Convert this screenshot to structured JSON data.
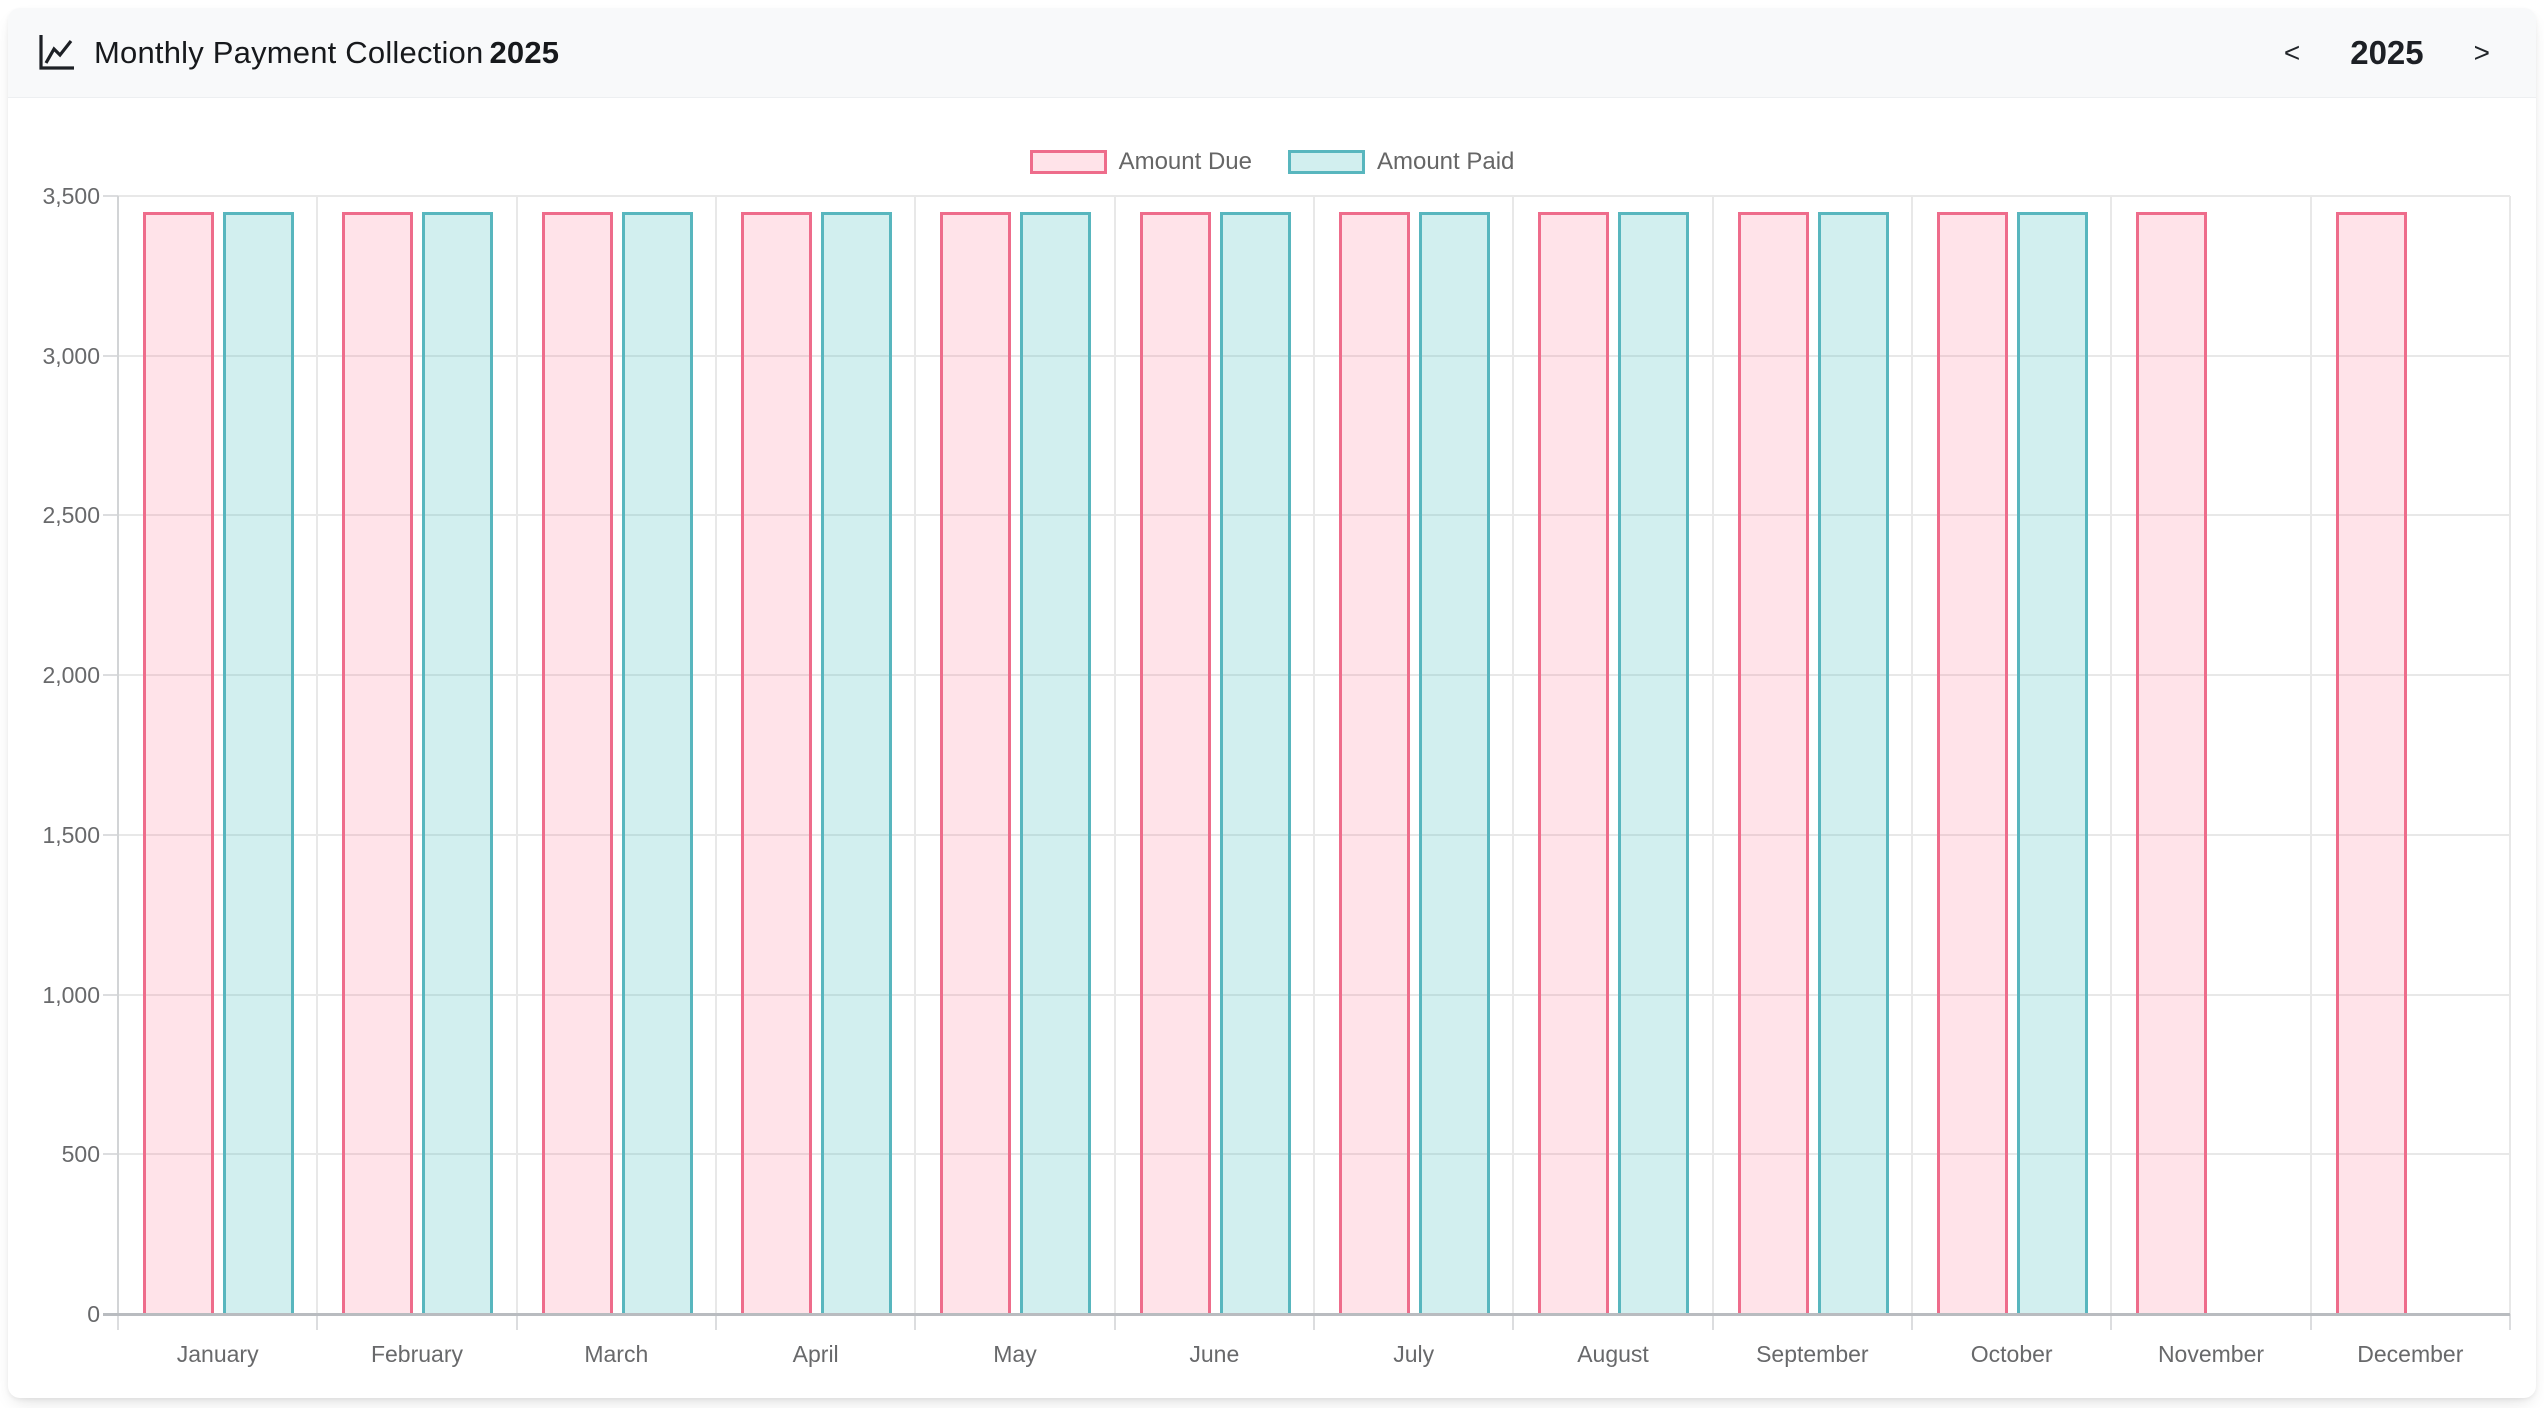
{
  "header": {
    "title": "Monthly Payment Collection",
    "title_year": "2025",
    "icon": "chart-line-icon",
    "year_nav": {
      "prev": "<",
      "year": "2025",
      "next": ">"
    }
  },
  "chart_data": {
    "type": "bar",
    "title": "Monthly Payment Collection 2025",
    "categories": [
      "January",
      "February",
      "March",
      "April",
      "May",
      "June",
      "July",
      "August",
      "September",
      "October",
      "November",
      "December"
    ],
    "series": [
      {
        "name": "Amount Due",
        "border_color": "#ee6c8b",
        "fill_color": "rgba(255,99,132,0.18)",
        "values": [
          3450,
          3450,
          3450,
          3450,
          3450,
          3450,
          3450,
          3450,
          3450,
          3450,
          3450,
          3450
        ]
      },
      {
        "name": "Amount Paid",
        "border_color": "#58b6be",
        "fill_color": "rgba(75,192,192,0.25)",
        "values": [
          3450,
          3450,
          3450,
          3450,
          3450,
          3450,
          3450,
          3450,
          3450,
          3450,
          null,
          null
        ]
      }
    ],
    "ylim": [
      0,
      3500
    ],
    "ytick_step": 500,
    "ytick_labels": [
      "0",
      "500",
      "1,000",
      "1,500",
      "2,000",
      "2,500",
      "3,000",
      "3,500"
    ],
    "xlabel": "",
    "ylabel": "",
    "grid": true,
    "legend_position": "top"
  },
  "colors": {
    "header_bg": "#f8f9fa",
    "grid_line": "#e8e8e8",
    "axis_line": "#b9bcc0",
    "tick_text": "#68696b",
    "title_text": "#17191c"
  }
}
